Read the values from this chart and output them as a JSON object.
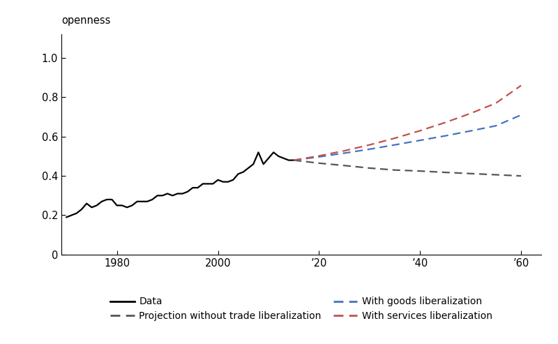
{
  "ylabel_text": "openness",
  "ylim": [
    0,
    1.12
  ],
  "yticks": [
    0,
    0.2,
    0.4,
    0.6,
    0.8,
    1.0
  ],
  "xticks": [
    1980,
    2000,
    2020,
    2040,
    2060
  ],
  "xtick_labels": [
    "1980",
    "2000",
    "’20",
    "’40",
    "’60"
  ],
  "historical_years": [
    1970,
    1971,
    1972,
    1973,
    1974,
    1975,
    1976,
    1977,
    1978,
    1979,
    1980,
    1981,
    1982,
    1983,
    1984,
    1985,
    1986,
    1987,
    1988,
    1989,
    1990,
    1991,
    1992,
    1993,
    1994,
    1995,
    1996,
    1997,
    1998,
    1999,
    2000,
    2001,
    2002,
    2003,
    2004,
    2005,
    2006,
    2007,
    2008,
    2009,
    2010,
    2011,
    2012,
    2013,
    2014,
    2015
  ],
  "historical_values": [
    0.19,
    0.2,
    0.21,
    0.23,
    0.26,
    0.24,
    0.25,
    0.27,
    0.28,
    0.28,
    0.25,
    0.25,
    0.24,
    0.25,
    0.27,
    0.27,
    0.27,
    0.28,
    0.3,
    0.3,
    0.31,
    0.3,
    0.31,
    0.31,
    0.32,
    0.34,
    0.34,
    0.36,
    0.36,
    0.36,
    0.38,
    0.37,
    0.37,
    0.38,
    0.41,
    0.42,
    0.44,
    0.46,
    0.52,
    0.46,
    0.49,
    0.52,
    0.5,
    0.49,
    0.48,
    0.48
  ],
  "proj_years": [
    2015,
    2020,
    2025,
    2030,
    2035,
    2040,
    2045,
    2050,
    2055,
    2060
  ],
  "proj_no_lib": [
    0.48,
    0.465,
    0.453,
    0.44,
    0.43,
    0.425,
    0.418,
    0.412,
    0.406,
    0.4
  ],
  "proj_goods": [
    0.48,
    0.497,
    0.516,
    0.536,
    0.558,
    0.581,
    0.604,
    0.629,
    0.655,
    0.71
  ],
  "proj_services": [
    0.48,
    0.502,
    0.528,
    0.558,
    0.592,
    0.63,
    0.672,
    0.718,
    0.77,
    0.86
  ],
  "color_data": "#000000",
  "color_no_lib": "#555555",
  "color_goods": "#4472c4",
  "color_services": "#c0504d",
  "legend_labels": [
    "Data",
    "Projection without trade liberalization",
    "With goods liberalization",
    "With services liberalization"
  ],
  "figsize": [
    8.0,
    4.93
  ],
  "dpi": 100
}
